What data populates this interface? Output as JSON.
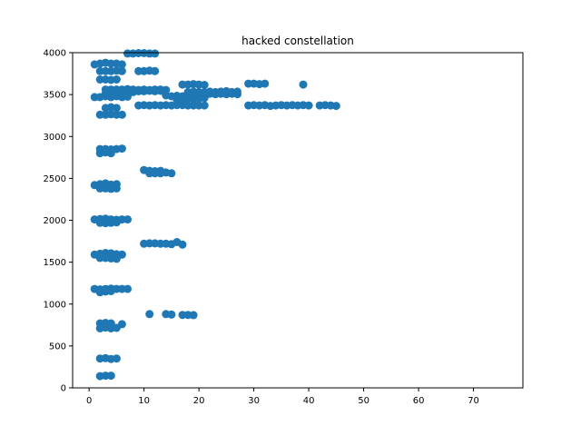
{
  "chart_data": {
    "type": "scatter",
    "title": "hacked constellation",
    "xlabel": "",
    "ylabel": "",
    "xlim": [
      -3,
      79
    ],
    "ylim": [
      0,
      4000
    ],
    "x_ticks": [
      0,
      10,
      20,
      30,
      40,
      50,
      60,
      70
    ],
    "y_ticks": [
      0,
      500,
      1000,
      1500,
      2000,
      2500,
      3000,
      3500,
      4000
    ],
    "grid": false,
    "marker_color": "#1f77b4",
    "series": [
      {
        "points": [
          [
            2,
            140
          ],
          [
            3,
            145
          ],
          [
            4,
            145
          ],
          [
            2,
            350
          ],
          [
            3,
            355
          ],
          [
            4,
            345
          ],
          [
            5,
            350
          ],
          [
            2,
            710
          ],
          [
            3,
            720
          ],
          [
            4,
            710
          ],
          [
            5,
            715
          ],
          [
            2,
            770
          ],
          [
            3,
            775
          ],
          [
            4,
            770
          ],
          [
            6,
            760
          ],
          [
            11,
            880
          ],
          [
            14,
            880
          ],
          [
            15,
            875
          ],
          [
            17,
            870
          ],
          [
            18,
            870
          ],
          [
            19,
            868
          ],
          [
            1,
            1180
          ],
          [
            2,
            1175
          ],
          [
            3,
            1180
          ],
          [
            4,
            1185
          ],
          [
            5,
            1180
          ],
          [
            6,
            1180
          ],
          [
            7,
            1180
          ],
          [
            2,
            1140
          ],
          [
            3,
            1150
          ],
          [
            4,
            1155
          ],
          [
            1,
            1590
          ],
          [
            2,
            1600
          ],
          [
            3,
            1610
          ],
          [
            4,
            1605
          ],
          [
            5,
            1595
          ],
          [
            6,
            1590
          ],
          [
            2,
            1550
          ],
          [
            3,
            1550
          ],
          [
            4,
            1545
          ],
          [
            5,
            1540
          ],
          [
            10,
            1720
          ],
          [
            11,
            1725
          ],
          [
            12,
            1725
          ],
          [
            13,
            1720
          ],
          [
            14,
            1720
          ],
          [
            15,
            1715
          ],
          [
            16,
            1740
          ],
          [
            17,
            1710
          ],
          [
            1,
            2010
          ],
          [
            2,
            2015
          ],
          [
            3,
            2020
          ],
          [
            4,
            2010
          ],
          [
            5,
            2005
          ],
          [
            6,
            2010
          ],
          [
            7,
            2010
          ],
          [
            2,
            1970
          ],
          [
            3,
            1965
          ],
          [
            4,
            1970
          ],
          [
            5,
            1975
          ],
          [
            1,
            2420
          ],
          [
            2,
            2430
          ],
          [
            3,
            2440
          ],
          [
            4,
            2425
          ],
          [
            5,
            2430
          ],
          [
            2,
            2380
          ],
          [
            3,
            2380
          ],
          [
            4,
            2375
          ],
          [
            5,
            2380
          ],
          [
            10,
            2600
          ],
          [
            11,
            2590
          ],
          [
            12,
            2585
          ],
          [
            13,
            2590
          ],
          [
            14,
            2570
          ],
          [
            15,
            2560
          ],
          [
            11,
            2560
          ],
          [
            12,
            2560
          ],
          [
            13,
            2560
          ],
          [
            2,
            2800
          ],
          [
            3,
            2810
          ],
          [
            4,
            2800
          ],
          [
            2,
            2850
          ],
          [
            3,
            2850
          ],
          [
            4,
            2845
          ],
          [
            5,
            2850
          ],
          [
            6,
            2855
          ],
          [
            2,
            3260
          ],
          [
            3,
            3260
          ],
          [
            4,
            3265
          ],
          [
            5,
            3260
          ],
          [
            6,
            3260
          ],
          [
            3,
            3340
          ],
          [
            4,
            3350
          ],
          [
            5,
            3340
          ],
          [
            1,
            3470
          ],
          [
            2,
            3470
          ],
          [
            3,
            3480
          ],
          [
            4,
            3470
          ],
          [
            5,
            3480
          ],
          [
            6,
            3470
          ],
          [
            7,
            3475
          ],
          [
            3,
            3510
          ],
          [
            4,
            3520
          ],
          [
            5,
            3525
          ],
          [
            6,
            3530
          ],
          [
            7,
            3530
          ],
          [
            8,
            3530
          ],
          [
            9,
            3540
          ],
          [
            10,
            3540
          ],
          [
            11,
            3545
          ],
          [
            12,
            3540
          ],
          [
            13,
            3545
          ],
          [
            3,
            3560
          ],
          [
            4,
            3560
          ],
          [
            5,
            3560
          ],
          [
            6,
            3560
          ],
          [
            7,
            3565
          ],
          [
            8,
            3560
          ],
          [
            9,
            3555
          ],
          [
            10,
            3560
          ],
          [
            11,
            3555
          ],
          [
            12,
            3560
          ],
          [
            13,
            3560
          ],
          [
            14,
            3555
          ],
          [
            9,
            3370
          ],
          [
            10,
            3375
          ],
          [
            11,
            3370
          ],
          [
            12,
            3375
          ],
          [
            13,
            3370
          ],
          [
            14,
            3375
          ],
          [
            15,
            3370
          ],
          [
            16,
            3375
          ],
          [
            17,
            3375
          ],
          [
            18,
            3370
          ],
          [
            19,
            3370
          ],
          [
            20,
            3370
          ],
          [
            21,
            3370
          ],
          [
            14,
            3490
          ],
          [
            15,
            3480
          ],
          [
            16,
            3485
          ],
          [
            17,
            3480
          ],
          [
            18,
            3490
          ],
          [
            19,
            3500
          ],
          [
            20,
            3505
          ],
          [
            21,
            3500
          ],
          [
            22,
            3510
          ],
          [
            23,
            3505
          ],
          [
            24,
            3510
          ],
          [
            25,
            3505
          ],
          [
            26,
            3510
          ],
          [
            27,
            3505
          ],
          [
            16,
            3440
          ],
          [
            17,
            3440
          ],
          [
            18,
            3450
          ],
          [
            19,
            3445
          ],
          [
            20,
            3450
          ],
          [
            21,
            3460
          ],
          [
            18,
            3530
          ],
          [
            19,
            3535
          ],
          [
            20,
            3530
          ],
          [
            21,
            3530
          ],
          [
            22,
            3535
          ],
          [
            23,
            3530
          ],
          [
            24,
            3535
          ],
          [
            25,
            3540
          ],
          [
            26,
            3530
          ],
          [
            27,
            3535
          ],
          [
            17,
            3620
          ],
          [
            18,
            3620
          ],
          [
            19,
            3625
          ],
          [
            20,
            3620
          ],
          [
            21,
            3615
          ],
          [
            29,
            3370
          ],
          [
            30,
            3375
          ],
          [
            31,
            3370
          ],
          [
            32,
            3375
          ],
          [
            33,
            3365
          ],
          [
            34,
            3370
          ],
          [
            35,
            3375
          ],
          [
            36,
            3370
          ],
          [
            37,
            3375
          ],
          [
            38,
            3370
          ],
          [
            39,
            3375
          ],
          [
            40,
            3370
          ],
          [
            42,
            3370
          ],
          [
            43,
            3375
          ],
          [
            44,
            3370
          ],
          [
            45,
            3365
          ],
          [
            29,
            3630
          ],
          [
            30,
            3630
          ],
          [
            31,
            3625
          ],
          [
            32,
            3630
          ],
          [
            39,
            3620
          ],
          [
            2,
            3680
          ],
          [
            3,
            3680
          ],
          [
            4,
            3675
          ],
          [
            5,
            3680
          ],
          [
            2,
            3780
          ],
          [
            3,
            3780
          ],
          [
            4,
            3780
          ],
          [
            5,
            3785
          ],
          [
            6,
            3780
          ],
          [
            9,
            3780
          ],
          [
            10,
            3780
          ],
          [
            11,
            3785
          ],
          [
            12,
            3780
          ],
          [
            1,
            3860
          ],
          [
            2,
            3870
          ],
          [
            3,
            3880
          ],
          [
            4,
            3870
          ],
          [
            5,
            3870
          ],
          [
            6,
            3860
          ],
          [
            7,
            3990
          ],
          [
            8,
            3990
          ],
          [
            9,
            3995
          ],
          [
            10,
            3995
          ],
          [
            11,
            3990
          ],
          [
            12,
            3990
          ]
        ]
      }
    ]
  }
}
